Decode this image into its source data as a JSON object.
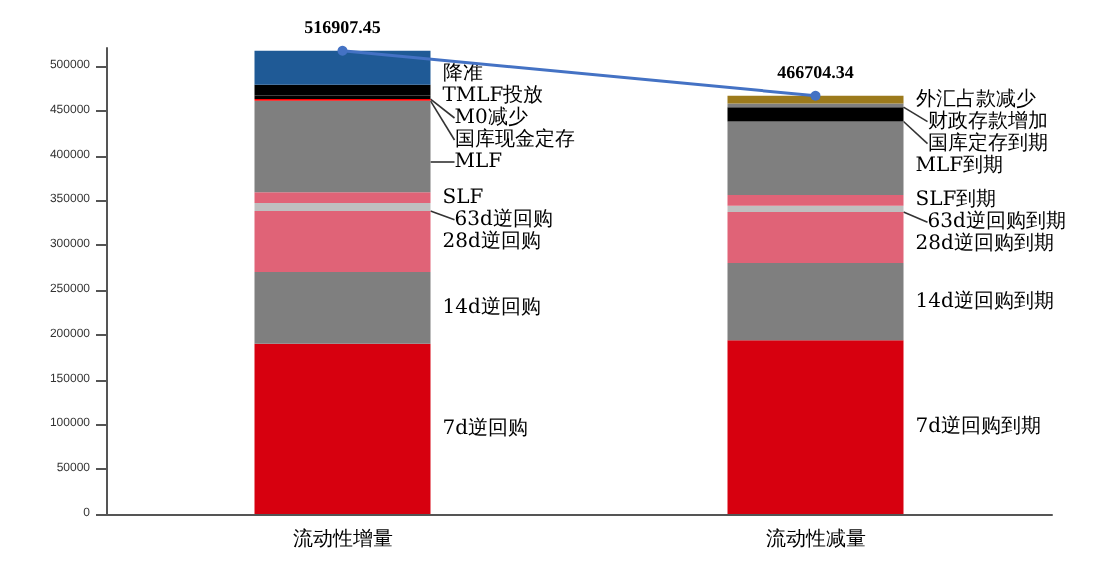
{
  "chart_data": {
    "type": "bar",
    "stacked": true,
    "categories": [
      "流动性增量",
      "流动性减量"
    ],
    "ylim": [
      0,
      520000
    ],
    "yticks": [
      0,
      50000,
      100000,
      150000,
      200000,
      250000,
      300000,
      350000,
      400000,
      450000,
      500000
    ],
    "series": [
      {
        "name": "7d逆回购",
        "color": "#d7000f",
        "values": [
          190000,
          null
        ]
      },
      {
        "name": "14d逆回购",
        "color": "#7f7f7f",
        "values": [
          80000,
          null
        ]
      },
      {
        "name": "28d逆回购",
        "color": "#e06377",
        "values": [
          68000,
          null
        ]
      },
      {
        "name": "63d逆回购",
        "color": "#bfbfbf",
        "values": [
          9000,
          null
        ]
      },
      {
        "name": "SLF",
        "color": "#e06377",
        "values": [
          12000,
          null
        ]
      },
      {
        "name": "MLF",
        "color": "#7f7f7f",
        "values": [
          102000,
          null
        ]
      },
      {
        "name": "国库现金定存",
        "color": "#ff0000",
        "values": [
          2000,
          null
        ]
      },
      {
        "name": "M0减少",
        "color": "#000000",
        "values": [
          4000,
          null
        ]
      },
      {
        "name": "TMLF投放",
        "color": "#000000",
        "values": [
          12000,
          null
        ]
      },
      {
        "name": "降准",
        "color": "#1f5a96",
        "values": [
          37900,
          null
        ]
      },
      {
        "name": "7d逆回购到期",
        "color": "#d7000f",
        "values": [
          null,
          194000
        ]
      },
      {
        "name": "14d逆回购到期",
        "color": "#7f7f7f",
        "values": [
          null,
          86000
        ]
      },
      {
        "name": "28d逆回购到期",
        "color": "#e06377",
        "values": [
          null,
          57000
        ]
      },
      {
        "name": "63d逆回购到期",
        "color": "#bfbfbf",
        "values": [
          null,
          7000
        ]
      },
      {
        "name": "SLF到期",
        "color": "#e06377",
        "values": [
          null,
          12000
        ]
      },
      {
        "name": "MLF到期",
        "color": "#7f7f7f",
        "values": [
          null,
          82000
        ]
      },
      {
        "name": "国库定存到期",
        "color": "#000000",
        "values": [
          null,
          16000
        ]
      },
      {
        "name": "财政存款增加",
        "color": "#7f7f7f",
        "values": [
          null,
          4000
        ]
      },
      {
        "name": "外汇占款减少",
        "color": "#9c7a1c",
        "values": [
          null,
          8700
        ]
      },
      {
        "type": "line",
        "color": "#4472c4",
        "marker": "circle",
        "values": [
          516907.45,
          466704.34
        ],
        "value_labels": [
          "516907.45",
          "466704.34"
        ]
      }
    ]
  }
}
